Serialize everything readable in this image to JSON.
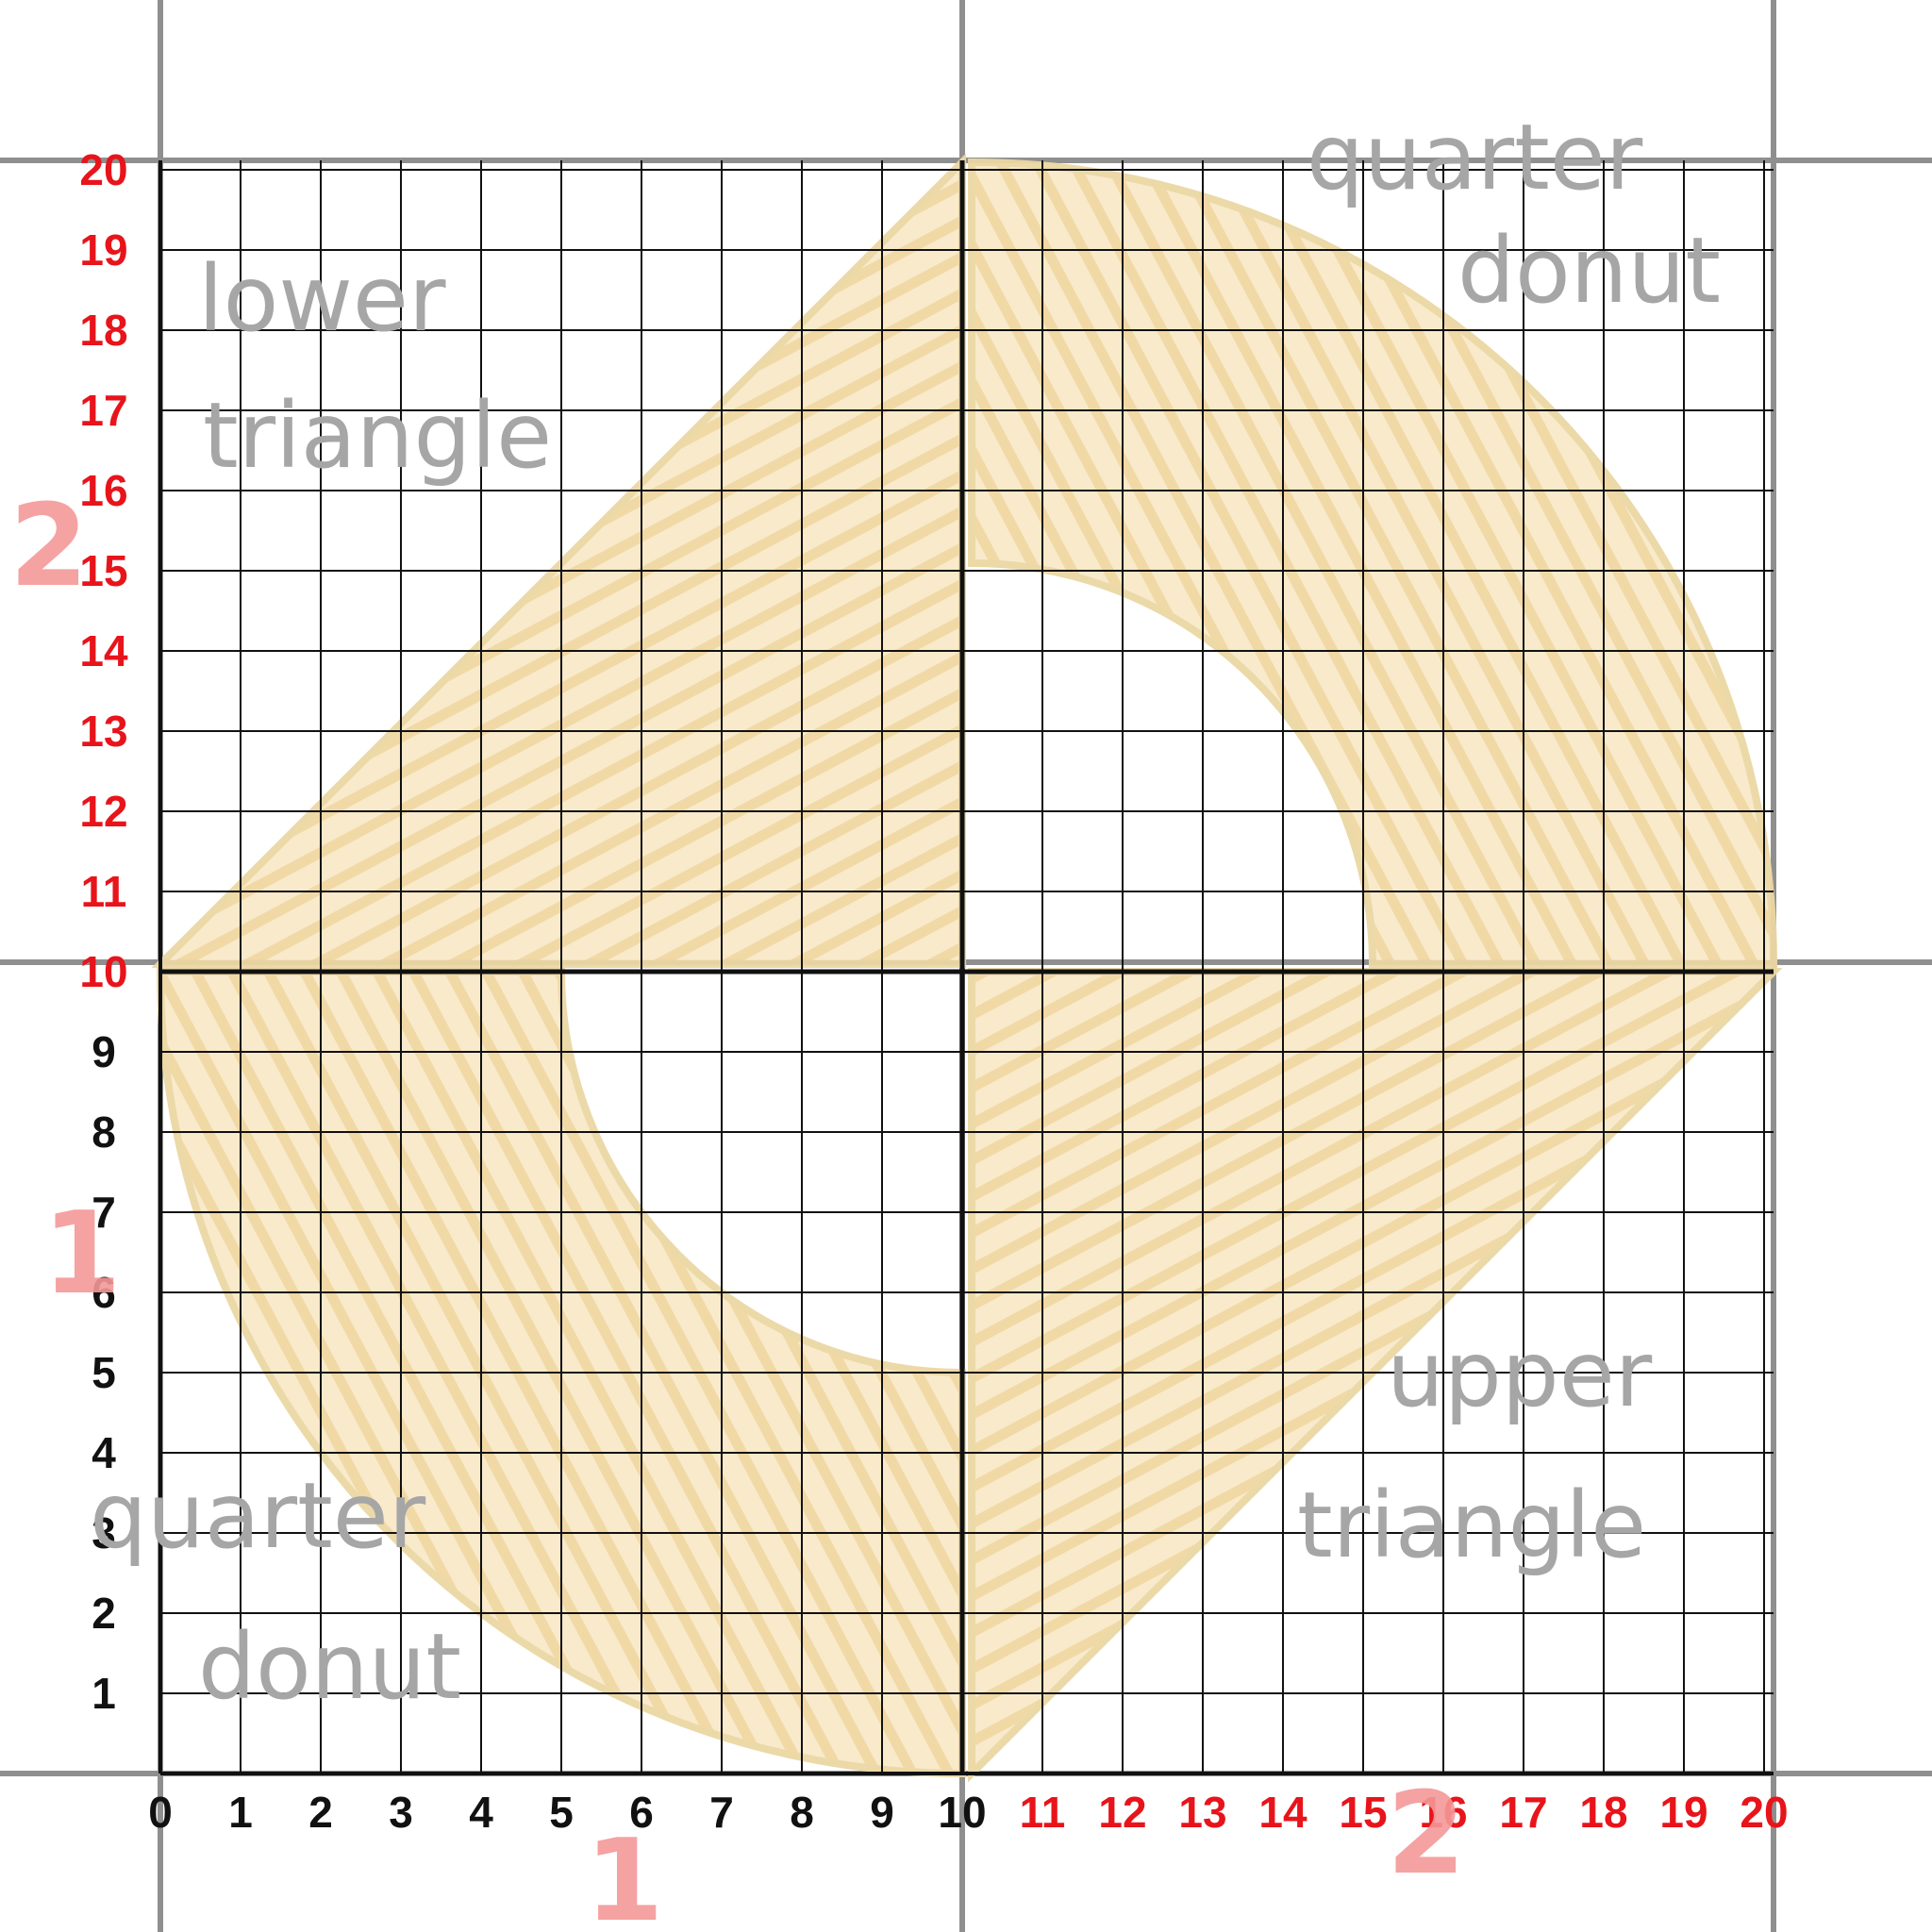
{
  "diagram": {
    "x_axis_ticks": [
      "0",
      "1",
      "2",
      "3",
      "4",
      "5",
      "6",
      "7",
      "8",
      "9",
      "10",
      "11",
      "12",
      "13",
      "14",
      "15",
      "16",
      "17",
      "18",
      "19",
      "20"
    ],
    "y_axis_ticks": [
      "0",
      "1",
      "2",
      "3",
      "4",
      "5",
      "6",
      "7",
      "8",
      "9",
      "10",
      "11",
      "12",
      "13",
      "14",
      "15",
      "16",
      "17",
      "18",
      "19",
      "20"
    ],
    "shape_labels": {
      "top_left": [
        "lower",
        "triangle"
      ],
      "top_right": [
        "quarter",
        "donut"
      ],
      "bottom_left": [
        "quarter",
        "donut"
      ],
      "bottom_right": [
        "upper",
        "triangle"
      ]
    },
    "axis_markers": {
      "x_one": "1",
      "x_two": "2",
      "y_one": "1",
      "y_two": "2"
    },
    "colors": {
      "fill": "#f6e2b8",
      "stroke": "#ecd7a4",
      "fine_grid": "#111111",
      "coarse_grid": "#8f8f8f",
      "tick_black": "#111111",
      "tick_red": "#e8141b",
      "label": "#a6a6a6",
      "marker": "#f59898"
    }
  }
}
